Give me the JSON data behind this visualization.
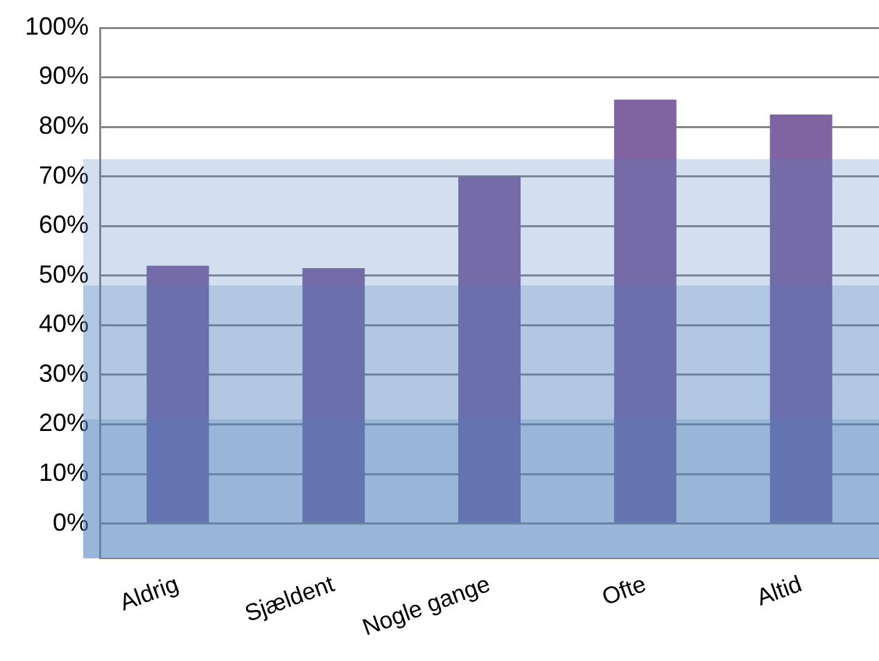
{
  "chart_data": {
    "type": "bar",
    "categories": [
      "Aldrig",
      "Sjældent",
      "Nogle gange",
      "Ofte",
      "Altid"
    ],
    "values": [
      52,
      51.5,
      70,
      85.5,
      82.5
    ],
    "color": "#8064a2",
    "ylim": [
      -7,
      100
    ],
    "yticks": [
      {
        "value": 0,
        "label": "0%"
      },
      {
        "value": 10,
        "label": "10%"
      },
      {
        "value": 20,
        "label": "20%"
      },
      {
        "value": 30,
        "label": "30%"
      },
      {
        "value": 40,
        "label": "40%"
      },
      {
        "value": 50,
        "label": "50%"
      },
      {
        "value": 60,
        "label": "60%"
      },
      {
        "value": 70,
        "label": "70%"
      },
      {
        "value": 80,
        "label": "80%"
      },
      {
        "value": 90,
        "label": "90%"
      },
      {
        "value": 100,
        "label": "100%"
      }
    ],
    "grid": "y",
    "legend": false,
    "bands": [
      {
        "axis": "y",
        "from": -7,
        "to": 73.5,
        "color": "#4f81bd"
      },
      {
        "axis": "y",
        "from": -7,
        "to": 48,
        "color": "#4f81bd"
      },
      {
        "axis": "y",
        "from": -7,
        "to": 21,
        "color": "#4f81bd"
      }
    ]
  }
}
